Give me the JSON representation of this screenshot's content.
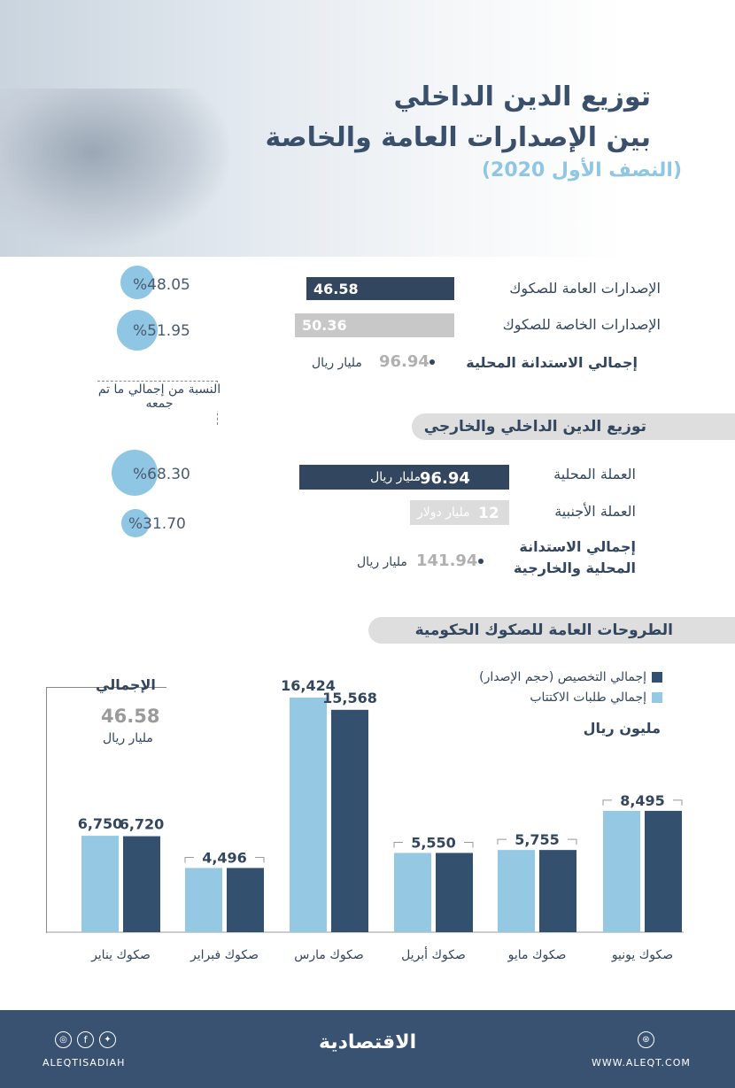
{
  "header": {
    "title_line1": "توزيع الدين الداخلي",
    "title_line2": "بين الإصدارات العامة والخاصة",
    "subtitle": "(النصف الأول 2020)"
  },
  "section1": {
    "rows": [
      {
        "label": "الإصدارات العامة للصكوك",
        "value": "46.58",
        "color": "#33465f",
        "percent": "%48.05"
      },
      {
        "label": "الإصدارات الخاصة للصكوك",
        "value": "50.36",
        "color": "#c8c8c8",
        "percent": "%51.95"
      }
    ],
    "total_label": "إجمالي الاستدانة المحلية",
    "total_value": "96.94",
    "total_unit": "مليار ريال",
    "share_note": "النسبة من إجمالي ما تم جمعه"
  },
  "section2": {
    "heading": "توزيع الدين الداخلي والخارجي",
    "rows": [
      {
        "label": "العملة المحلية",
        "value": "96.94",
        "unit": "مليار ريال",
        "color": "#33465f",
        "percent": "%68.30"
      },
      {
        "label": "العملة الأجنبية",
        "value": "12",
        "unit": "مليار دولار",
        "color": "#dcdcdc",
        "percent": "%31.70"
      }
    ],
    "total_label_line1": "إجمالي الاستدانة",
    "total_label_line2": "المحلية والخارجية",
    "total_value": "141.94",
    "total_unit": "مليار ريال"
  },
  "section3": {
    "heading": "الطروحات العامة للصكوك الحكومية",
    "total_label": "الإجمالي",
    "total_value": "46.58",
    "total_unit": "مليار ريال"
  },
  "chart_data": {
    "type": "bar",
    "unit_label": "مليون ريال",
    "categories": [
      "صكوك يناير",
      "صكوك فبراير",
      "صكوك مارس",
      "صكوك أبريل",
      "صكوك مايو",
      "صكوك يونيو"
    ],
    "series": [
      {
        "name": "إجمالي طلبات الاكتتاب",
        "color": "#95c8e3",
        "values": [
          6750,
          4496,
          16424,
          5550,
          5755,
          8495
        ]
      },
      {
        "name": "إجمالي التخصيص (حجم الإصدار)",
        "color": "#33506f",
        "values": [
          6720,
          4496,
          15568,
          5550,
          5755,
          8495
        ]
      }
    ],
    "data_labels": [
      [
        "6,750",
        "6,720"
      ],
      [
        "4,496"
      ],
      [
        "16,424",
        "15,568"
      ],
      [
        "5,550"
      ],
      [
        "5,755"
      ],
      [
        "8,495"
      ]
    ],
    "ylim": [
      0,
      16424
    ],
    "grid": false,
    "legend": "top-right"
  },
  "footer": {
    "social_handle": "ALEQTISADIAH",
    "logo": "الاقتصادية",
    "website": "WWW.ALEQT.COM"
  }
}
